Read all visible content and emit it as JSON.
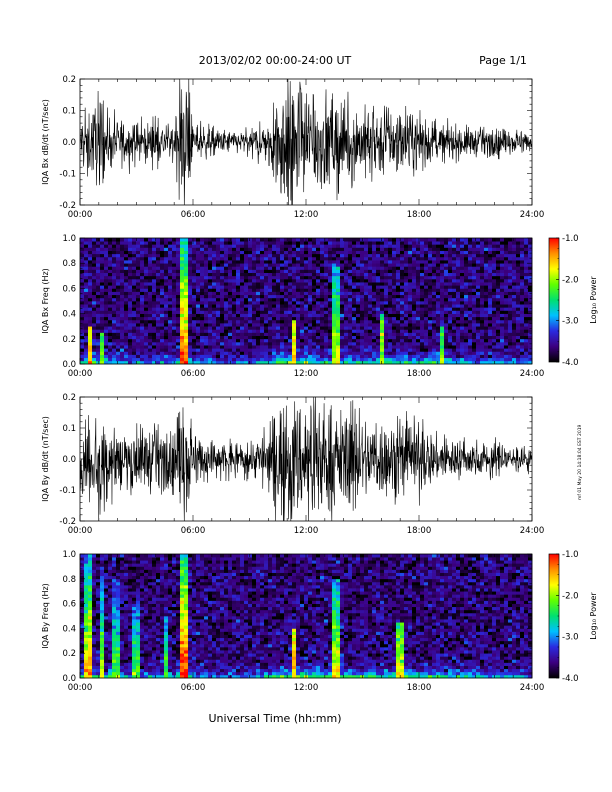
{
  "header": {
    "title": "2013/02/02  00:00-24:00 UT",
    "page": "Page 1/1"
  },
  "footer": {
    "xlabel": "Universal Time (hh:mm)"
  },
  "side_stamp": "mf 01 May 20 14:18:04 EST 2019",
  "colorbar": {
    "label": "Log₁₀ Power",
    "ticks": [
      "-1.0",
      "-2.0",
      "-3.0",
      "-4.0"
    ],
    "tick_values": [
      -1.0,
      -2.0,
      -3.0,
      -4.0
    ],
    "range": [
      -4.0,
      -1.0
    ],
    "colors": [
      "#000000",
      "#3c0080",
      "#2a2ae0",
      "#00c0ff",
      "#00e070",
      "#60ff00",
      "#ffff00",
      "#ff9000",
      "#ff0000"
    ]
  },
  "chart_data": [
    {
      "type": "line",
      "ylabel": "IQA Bx dB/dt (nT/sec)",
      "xlim": [
        "00:00",
        "24:00"
      ],
      "ylim": [
        -0.2,
        0.2
      ],
      "x_ticks": [
        "00:00",
        "06:00",
        "12:00",
        "18:00",
        "24:00"
      ],
      "y_ticks": [
        "0.2",
        "0.1",
        "0.0",
        "-0.1",
        "-0.2"
      ],
      "y_tick_values": [
        0.2,
        0.1,
        0.0,
        -0.1,
        -0.2
      ],
      "envelope": {
        "x_hours": [
          0,
          0.5,
          1,
          1.5,
          2,
          3,
          4,
          5,
          5.4,
          5.7,
          6,
          6.5,
          7,
          8,
          9,
          10,
          10.5,
          11,
          11.5,
          12,
          12.5,
          13,
          13.5,
          14,
          15,
          16,
          17,
          18,
          19,
          20,
          21,
          22,
          23,
          24
        ],
        "amplitude": [
          0.09,
          0.12,
          0.15,
          0.1,
          0.08,
          0.07,
          0.07,
          0.06,
          0.22,
          0.22,
          0.05,
          0.06,
          0.05,
          0.04,
          0.04,
          0.08,
          0.2,
          0.22,
          0.22,
          0.22,
          0.18,
          0.17,
          0.16,
          0.14,
          0.12,
          0.12,
          0.1,
          0.1,
          0.06,
          0.06,
          0.05,
          0.05,
          0.04,
          0.03
        ]
      },
      "color": "#000000"
    },
    {
      "type": "heatmap",
      "ylabel": "IQA Bx Freq (Hz)",
      "xlim": [
        "00:00",
        "24:00"
      ],
      "ylim": [
        0.0,
        1.0
      ],
      "x_ticks": [
        "00:00",
        "06:00",
        "12:00",
        "18:00",
        "24:00"
      ],
      "y_ticks": [
        "1.0",
        "0.8",
        "0.6",
        "0.4",
        "0.2",
        "0.0"
      ],
      "y_tick_values": [
        1.0,
        0.8,
        0.6,
        0.4,
        0.2,
        0.0
      ],
      "value_label": "Log₁₀ Power",
      "value_range": [
        -4.0,
        -1.0
      ],
      "low_freq_power_log10": {
        "x_hours": [
          0,
          0.5,
          1,
          2,
          3,
          4,
          5,
          5.5,
          6,
          7,
          8,
          9,
          10,
          11,
          12,
          13,
          14,
          15,
          16,
          17,
          18,
          19,
          20,
          21,
          22,
          23,
          24
        ],
        "values": [
          -2.6,
          -1.8,
          -2.4,
          -2.7,
          -2.8,
          -2.9,
          -2.6,
          -1.2,
          -2.7,
          -2.9,
          -3.0,
          -2.9,
          -2.5,
          -1.8,
          -1.9,
          -2.2,
          -2.2,
          -2.3,
          -2.2,
          -2.2,
          -2.3,
          -2.3,
          -2.6,
          -2.7,
          -2.8,
          -2.8,
          -2.9
        ]
      },
      "spikes": [
        {
          "hour": 0.5,
          "height_hz": 0.3
        },
        {
          "hour": 1.2,
          "height_hz": 0.25
        },
        {
          "hour": 5.55,
          "height_hz": 1.0
        },
        {
          "hour": 11.3,
          "height_hz": 0.35
        },
        {
          "hour": 13.6,
          "height_hz": 0.8
        },
        {
          "hour": 16.0,
          "height_hz": 0.4
        },
        {
          "hour": 19.2,
          "height_hz": 0.3
        }
      ]
    },
    {
      "type": "line",
      "ylabel": "IQA By dB/dt (nT/sec)",
      "xlim": [
        "00:00",
        "24:00"
      ],
      "ylim": [
        -0.2,
        0.2
      ],
      "x_ticks": [
        "00:00",
        "06:00",
        "12:00",
        "18:00",
        "24:00"
      ],
      "y_ticks": [
        "0.2",
        "0.1",
        "0.0",
        "-0.1",
        "-0.2"
      ],
      "y_tick_values": [
        0.2,
        0.1,
        0.0,
        -0.1,
        -0.2
      ],
      "envelope": {
        "x_hours": [
          0,
          0.5,
          1,
          1.5,
          2,
          3,
          4,
          5,
          5.4,
          5.7,
          6,
          6.5,
          7,
          8,
          9,
          10,
          10.5,
          11,
          11.5,
          12,
          12.5,
          13,
          13.5,
          14,
          15,
          16,
          17,
          18,
          19,
          20,
          21,
          22,
          23,
          24
        ],
        "amplitude": [
          0.13,
          0.16,
          0.18,
          0.14,
          0.12,
          0.11,
          0.12,
          0.1,
          0.22,
          0.22,
          0.08,
          0.08,
          0.07,
          0.06,
          0.06,
          0.1,
          0.2,
          0.22,
          0.22,
          0.22,
          0.2,
          0.2,
          0.18,
          0.17,
          0.15,
          0.14,
          0.13,
          0.13,
          0.08,
          0.07,
          0.06,
          0.06,
          0.05,
          0.04
        ]
      },
      "color": "#000000"
    },
    {
      "type": "heatmap",
      "ylabel": "IQA By Freq (Hz)",
      "xlim": [
        "00:00",
        "24:00"
      ],
      "ylim": [
        0.0,
        1.0
      ],
      "x_ticks": [
        "00:00",
        "06:00",
        "12:00",
        "18:00",
        "24:00"
      ],
      "y_ticks": [
        "1.0",
        "0.8",
        "0.6",
        "0.4",
        "0.2",
        "0.0"
      ],
      "y_tick_values": [
        1.0,
        0.8,
        0.6,
        0.4,
        0.2,
        0.0
      ],
      "value_label": "Log₁₀ Power",
      "value_range": [
        -4.0,
        -1.0
      ],
      "low_freq_power_log10": {
        "x_hours": [
          0,
          0.5,
          1,
          2,
          3,
          4,
          5,
          5.5,
          6,
          7,
          8,
          9,
          10,
          11,
          12,
          13,
          14,
          15,
          16,
          17,
          18,
          19,
          20,
          21,
          22,
          23,
          24
        ],
        "values": [
          -2.4,
          -1.7,
          -2.2,
          -2.5,
          -2.6,
          -2.7,
          -2.5,
          -1.1,
          -2.6,
          -2.8,
          -2.9,
          -2.8,
          -2.4,
          -1.7,
          -1.8,
          -2.0,
          -2.1,
          -2.2,
          -2.1,
          -2.1,
          -2.2,
          -2.2,
          -2.4,
          -2.6,
          -2.7,
          -2.7,
          -2.8
        ]
      },
      "spikes": [
        {
          "hour": 0.4,
          "height_hz": 1.0
        },
        {
          "hour": 1.2,
          "height_hz": 0.9
        },
        {
          "hour": 1.9,
          "height_hz": 0.8
        },
        {
          "hour": 3.0,
          "height_hz": 0.6
        },
        {
          "hour": 4.5,
          "height_hz": 0.5
        },
        {
          "hour": 5.55,
          "height_hz": 1.0
        },
        {
          "hour": 11.3,
          "height_hz": 0.4
        },
        {
          "hour": 13.6,
          "height_hz": 0.8
        },
        {
          "hour": 17.0,
          "height_hz": 0.45
        }
      ]
    }
  ]
}
